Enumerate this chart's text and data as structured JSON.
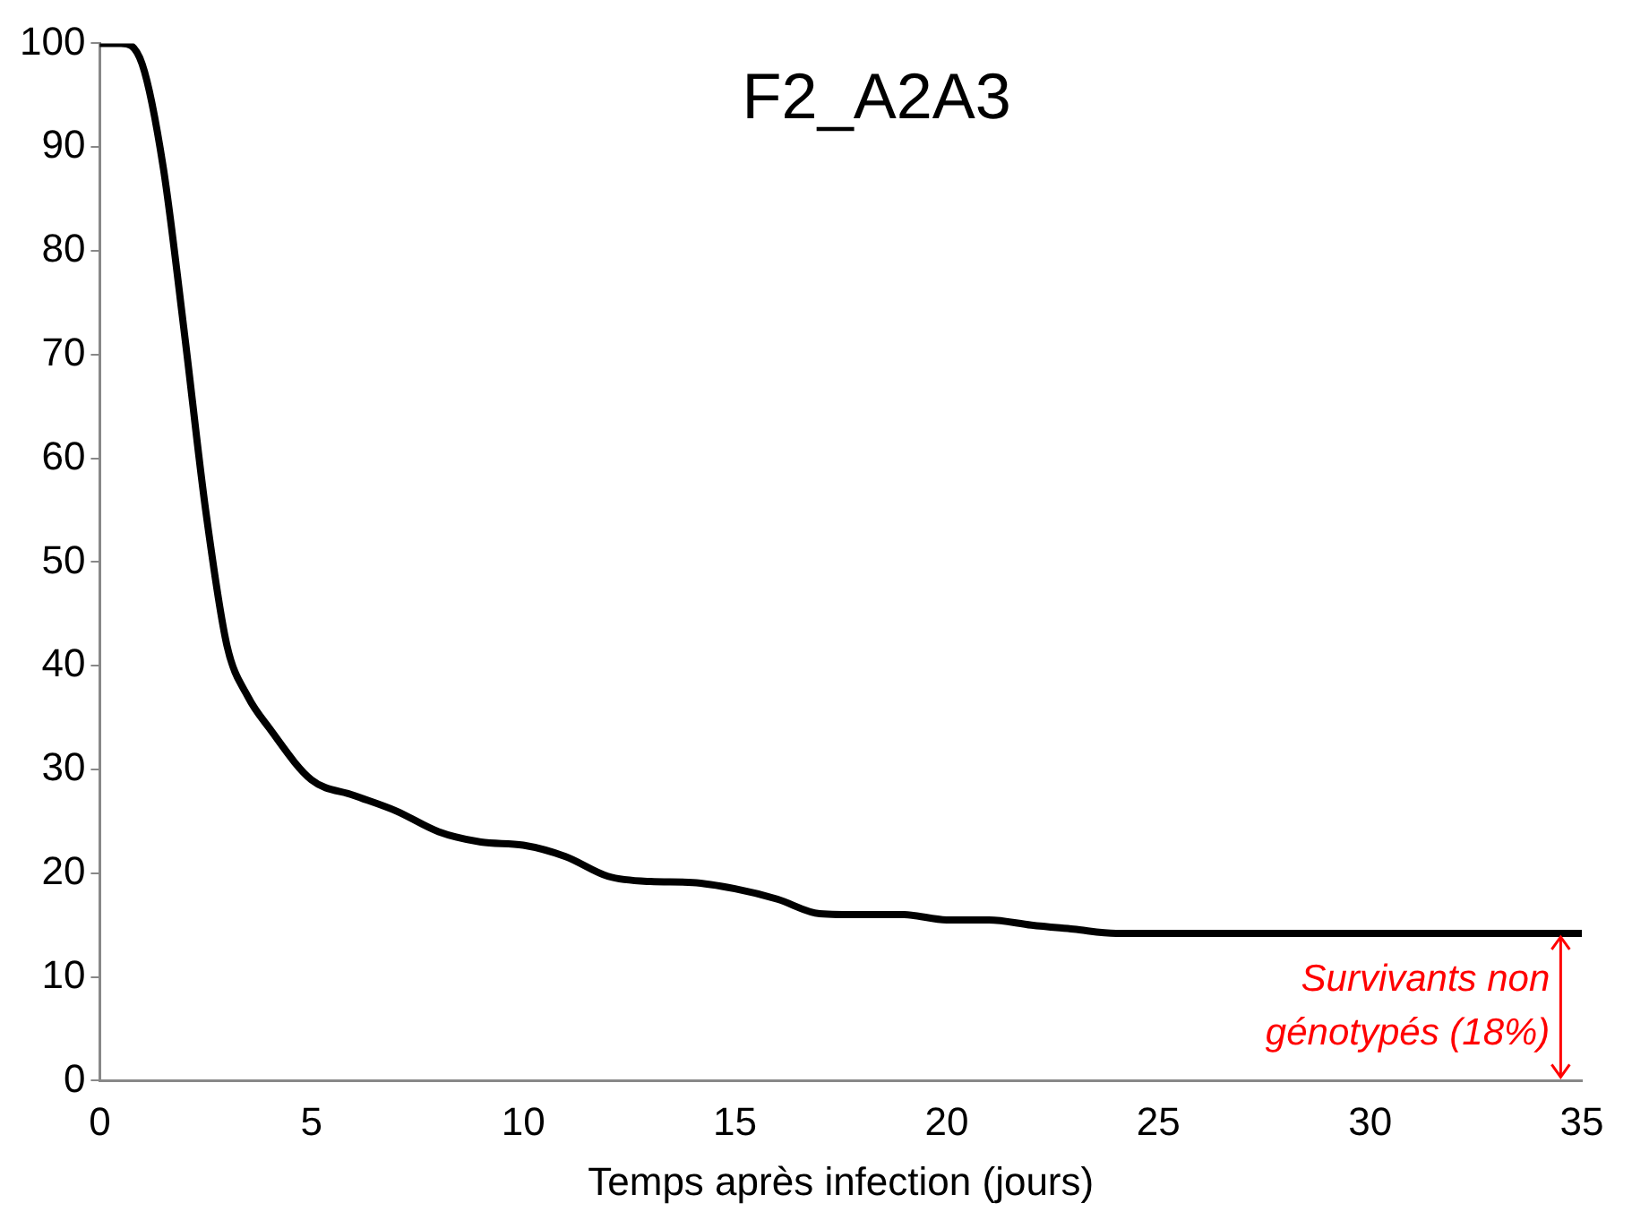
{
  "chart_data": {
    "type": "line",
    "title": "F2_A2A3",
    "xlabel": "Temps après infection (jours)",
    "x": [
      0,
      0.5,
      1,
      1.5,
      2,
      2.5,
      3,
      3.5,
      4,
      5,
      6,
      7,
      8,
      9,
      10,
      11,
      12,
      13,
      14,
      15,
      16,
      17,
      18,
      19,
      20,
      21,
      22,
      23,
      24,
      25,
      30,
      35
    ],
    "series": [
      {
        "color": "#000000",
        "values": [
          100,
          100,
          98,
          88,
          72,
          55,
          42,
          37,
          34,
          29,
          27.5,
          26,
          24,
          23,
          22.7,
          21.6,
          19.7,
          19.2,
          19.1,
          18.5,
          17.5,
          16.1,
          16,
          16,
          15.5,
          15.5,
          15,
          14.6,
          14.2,
          14.2,
          14.2,
          14.2
        ]
      }
    ],
    "annotations": [
      {
        "text": "Survivants non génotypés (18%)",
        "x": 34.5,
        "y": 14.2
      }
    ],
    "xlim": [
      0,
      35
    ],
    "xticks": [
      0,
      5,
      10,
      15,
      20,
      25,
      30,
      35
    ],
    "ylim": [
      0,
      100
    ],
    "yticks": [
      0,
      10,
      20,
      30,
      40,
      50,
      60,
      70,
      80,
      90,
      100
    ],
    "grid": false,
    "legend": false,
    "marker": "none",
    "line_style": "solid"
  }
}
